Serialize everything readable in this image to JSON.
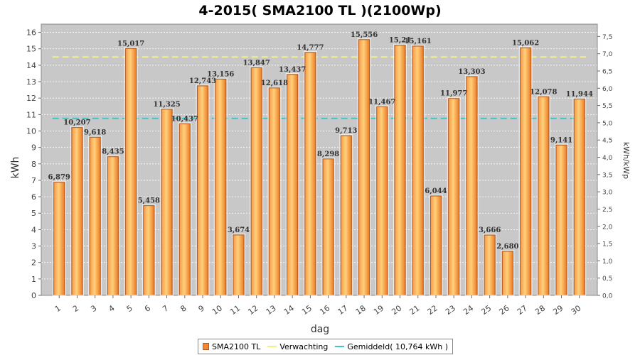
{
  "chart_data": {
    "type": "bar",
    "title": "4-2015( SMA2100 TL )(2100Wp)",
    "xlabel": "dag",
    "ylabel": "kWh",
    "y2label": "kWh/kWp",
    "ylim": [
      0,
      16.5
    ],
    "y2lim": [
      0,
      7.857
    ],
    "yticks": [
      "0",
      "1",
      "2",
      "3",
      "4",
      "5",
      "6",
      "7",
      "8",
      "9",
      "10",
      "11",
      "12",
      "13",
      "14",
      "15",
      "16"
    ],
    "y2ticks": [
      "0,0",
      "0,5",
      "1,0",
      "1,5",
      "2,0",
      "2,5",
      "3,0",
      "3,5",
      "4,0",
      "4,5",
      "5,0",
      "5,5",
      "6,0",
      "6,5",
      "7,0",
      "7,5"
    ],
    "grid": true,
    "categories": [
      "1",
      "2",
      "3",
      "4",
      "5",
      "6",
      "7",
      "8",
      "9",
      "10",
      "11",
      "12",
      "13",
      "14",
      "15",
      "16",
      "17",
      "18",
      "19",
      "20",
      "21",
      "22",
      "23",
      "24",
      "25",
      "26",
      "27",
      "28",
      "29",
      "30"
    ],
    "series": [
      {
        "name": "SMA2100 TL",
        "values": [
          6.879,
          10.207,
          9.618,
          8.435,
          15.017,
          5.458,
          11.325,
          10.437,
          12.743,
          13.156,
          3.674,
          13.847,
          12.618,
          13.437,
          14.777,
          8.298,
          9.713,
          15.556,
          11.467,
          15.215,
          15.161,
          6.044,
          11.977,
          13.303,
          3.666,
          2.68,
          15.062,
          12.078,
          9.141,
          11.944
        ],
        "labels": [
          "6,879",
          "10,207",
          "9,618",
          "8,435",
          "15,017",
          "5,458",
          "11,325",
          "10,437",
          "12,743",
          "13,156",
          "3,674",
          "13,847",
          "12,618",
          "13,437",
          "14,777",
          "8,298",
          "9,713",
          "15,556",
          "11,467",
          "15,21",
          "15,161",
          "6,044",
          "11,977",
          "13,303",
          "3,666",
          "2,680",
          "15,062",
          "12,078",
          "9,141",
          "11,944"
        ],
        "color": "#f08a3a"
      },
      {
        "name": "Verwachting",
        "value": 14.5,
        "color": "#f0f08c"
      },
      {
        "name": "Gemiddeld( 10,764 kWh )",
        "value": 10.764,
        "color": "#3ec6c6"
      }
    ],
    "legend_position": "bottom",
    "plot_background": "#c8c8c8"
  }
}
